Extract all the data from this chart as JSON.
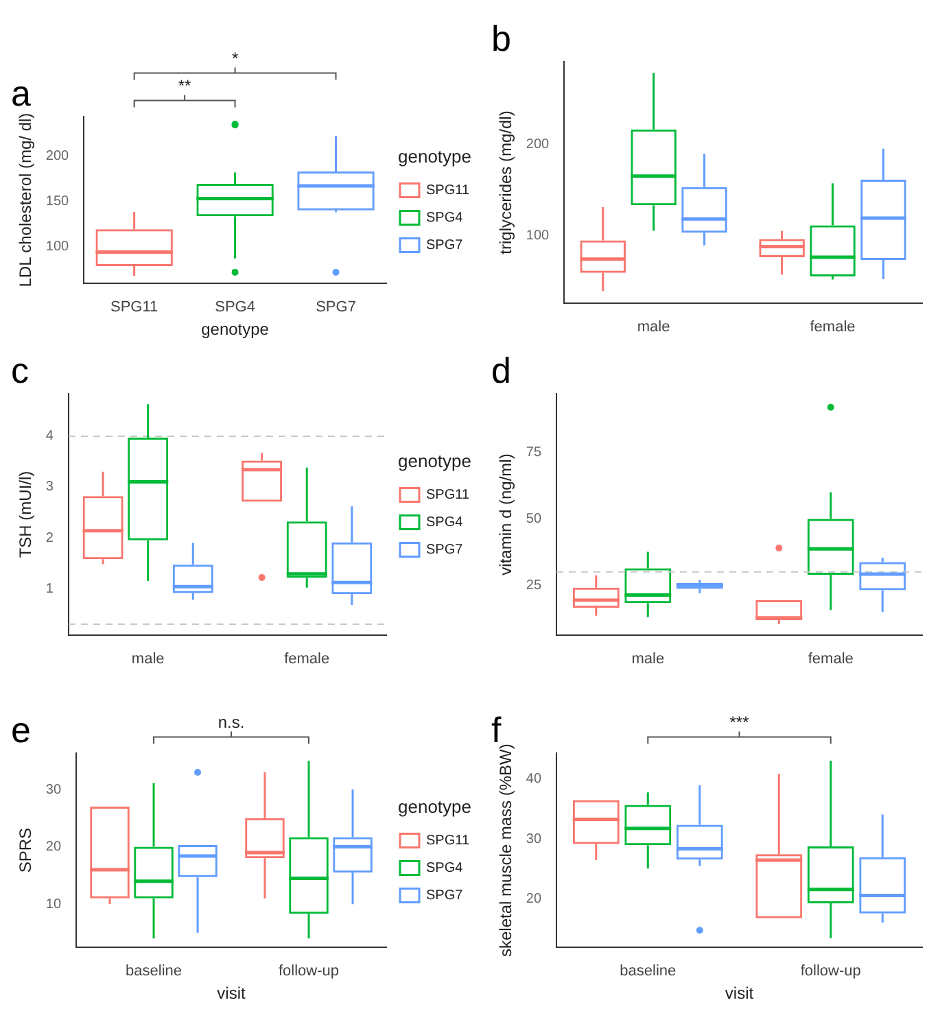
{
  "chart_data": [
    {
      "type": "box",
      "title": "a",
      "xlabel": "genotype",
      "ylabel": "LDL cholesterol (mg/ dl)",
      "legend_title": "genotype",
      "legend": "right",
      "categories": [
        "SPG11",
        "SPG4",
        "SPG7"
      ],
      "ylim": [
        60,
        243
      ],
      "yticks": [
        100,
        150,
        200
      ],
      "grid": false,
      "annotations": [
        "**",
        "*"
      ],
      "series": [
        {
          "name": "SPG11",
          "color": "#f8766d",
          "boxes": [
            {
              "low": 68,
              "q1": 78.8,
              "median": 94.2,
              "q3": 119.3,
              "high": 138.3
            },
            null,
            null
          ]
        },
        {
          "name": "SPG4",
          "color": "#00ba38",
          "boxes": [
            null,
            {
              "low": 87.2,
              "q1": 133.6,
              "median": 153,
              "q3": 169.3,
              "high": 181.8,
              "outliers": [
                234,
                235,
                72
              ]
            },
            null
          ]
        },
        {
          "name": "SPG7",
          "color": "#619cff",
          "boxes": [
            null,
            null,
            {
              "low": 138,
              "q1": 140,
              "median": 167,
              "q3": 183,
              "high": 222,
              "outliers": [
                72
              ]
            }
          ]
        }
      ]
    },
    {
      "type": "box",
      "title": "b",
      "ylabel": "triglycerides (mg/dl)",
      "categories": [
        "male",
        "female"
      ],
      "ylim": [
        26,
        290
      ],
      "yticks": [
        100,
        200
      ],
      "grid": false,
      "series": [
        {
          "color": "#f8766d",
          "boxes": [
            {
              "low": 39,
              "q1": 59,
              "median": 74,
              "q3": 94.5,
              "high": 131
            },
            {
              "low": 57,
              "q1": 76,
              "median": 87.7,
              "q3": 96,
              "high": 105
            }
          ]
        },
        {
          "color": "#00ba38",
          "boxes": [
            {
              "low": 105,
              "q1": 133,
              "median": 165,
              "q3": 216,
              "high": 278
            },
            {
              "low": 51.6,
              "q1": 55,
              "median": 76,
              "q3": 111,
              "high": 157
            }
          ]
        },
        {
          "color": "#619cff",
          "boxes": [
            {
              "low": 89,
              "q1": 103,
              "median": 118,
              "q3": 153,
              "high": 189.5
            },
            {
              "low": 52,
              "q1": 73,
              "median": 119,
              "q3": 161,
              "high": 195
            }
          ]
        }
      ]
    },
    {
      "type": "box",
      "title": "c",
      "ylabel": "TSH (mUI/l)",
      "legend_title": "genotype",
      "legend": "right",
      "categories": [
        "male",
        "female"
      ],
      "ylim": [
        0.09,
        4.83
      ],
      "yticks": [
        1,
        2,
        3,
        4
      ],
      "grid": false,
      "ref_lines": [
        {
          "axis": "y",
          "value": 4,
          "color": "#c8c8c8",
          "line_style": "dashed"
        },
        {
          "axis": "y",
          "value": 0.3,
          "color": "#c8c8c8",
          "line_style": "dashed"
        }
      ],
      "series": [
        {
          "name": "SPG11",
          "color": "#f8766d",
          "boxes": [
            {
              "low": 1.48,
              "q1": 1.58,
              "median": 2.14,
              "q3": 2.82,
              "high": 3.3
            },
            {
              "low": 2.71,
              "q1": 2.71,
              "median": 3.34,
              "q3": 3.52,
              "high": 3.67,
              "outliers": [
                1.22
              ]
            }
          ]
        },
        {
          "name": "SPG4",
          "color": "#00ba38",
          "boxes": [
            {
              "low": 1.15,
              "q1": 1.95,
              "median": 3.1,
              "q3": 3.97,
              "high": 4.63
            },
            {
              "low": 1.02,
              "q1": 1.21,
              "median": 1.29,
              "q3": 2.32,
              "high": 3.38
            }
          ]
        },
        {
          "name": "SPG7",
          "color": "#619cff",
          "boxes": [
            {
              "low": 0.78,
              "q1": 0.91,
              "median": 1.04,
              "q3": 1.47,
              "high": 1.9
            },
            {
              "low": 0.68,
              "q1": 0.89,
              "median": 1.12,
              "q3": 1.91,
              "high": 2.62
            }
          ]
        }
      ]
    },
    {
      "type": "box",
      "title": "d",
      "ylabel": "vitamin d (ng/ml)",
      "categories": [
        "male",
        "female"
      ],
      "ylim": [
        6.3,
        97
      ],
      "yticks": [
        25,
        50,
        75
      ],
      "grid": false,
      "ref_lines": [
        {
          "axis": "y",
          "value": 30,
          "color": "#c8c8c8",
          "line_style": "dashed"
        }
      ],
      "series": [
        {
          "color": "#f8766d",
          "boxes": [
            {
              "low": 13.5,
              "q1": 16.5,
              "median": 19.4,
              "q3": 24.1,
              "high": 28.7
            },
            {
              "low": 10.4,
              "q1": 11.9,
              "median": 12.7,
              "q3": 19.4,
              "high": 19.4,
              "outliers": [
                39
              ]
            }
          ]
        },
        {
          "color": "#00ba38",
          "boxes": [
            {
              "low": 13,
              "q1": 18.3,
              "median": 21.3,
              "q3": 31.4,
              "high": 37.6
            },
            {
              "low": 15.7,
              "q1": 28.9,
              "median": 38.7,
              "q3": 50,
              "high": 60,
              "outliers": [
                92
              ]
            }
          ]
        },
        {
          "color": "#619cff",
          "boxes": [
            {
              "low": 22,
              "q1": 23.6,
              "median": 25,
              "q3": 25.8,
              "high": 27
            },
            {
              "low": 14.9,
              "q1": 23.1,
              "median": 29.2,
              "q3": 33.7,
              "high": 35.4
            }
          ]
        }
      ]
    },
    {
      "type": "box",
      "title": "e",
      "xlabel": "visit",
      "ylabel": "SPRS",
      "legend_title": "genotype",
      "legend": "right",
      "categories": [
        "baseline",
        "follow-up"
      ],
      "ylim": [
        2.5,
        36.3
      ],
      "yticks": [
        10,
        20,
        30
      ],
      "grid": false,
      "annotations": [
        "n.s."
      ],
      "series": [
        {
          "name": "SPG11",
          "color": "#f8766d",
          "boxes": [
            {
              "low": 10,
              "q1": 11,
              "median": 16,
              "q3": 27,
              "high": 27
            },
            {
              "low": 11,
              "q1": 18,
              "median": 19,
              "q3": 25,
              "high": 33
            }
          ]
        },
        {
          "name": "SPG4",
          "color": "#00ba38",
          "boxes": [
            {
              "low": 4,
              "q1": 11,
              "median": 14,
              "q3": 20,
              "high": 31.1
            },
            {
              "low": 4,
              "q1": 8.3,
              "median": 14.5,
              "q3": 21.7,
              "high": 35
            }
          ]
        },
        {
          "name": "SPG7",
          "color": "#619cff",
          "boxes": [
            {
              "low": 5,
              "q1": 14.7,
              "median": 18.4,
              "q3": 20.3,
              "high": 20.3,
              "outliers": [
                33
              ]
            },
            {
              "low": 10,
              "q1": 15.5,
              "median": 20,
              "q3": 21.7,
              "high": 30
            }
          ]
        }
      ]
    },
    {
      "type": "box",
      "title": "f",
      "xlabel": "visit",
      "ylabel": "skeletal muscle mass (%BW)",
      "categories": [
        "baseline",
        "follow-up"
      ],
      "ylim": [
        12,
        44.3
      ],
      "yticks": [
        20,
        30,
        40
      ],
      "grid": false,
      "annotations": [
        "***"
      ],
      "series": [
        {
          "color": "#f8766d",
          "boxes": [
            {
              "low": 26.5,
              "q1": 29.2,
              "median": 33.3,
              "q3": 36.5,
              "high": 36.5
            },
            {
              "low": 16.8,
              "q1": 16.8,
              "median": 26.5,
              "q3": 27.5,
              "high": 40.9
            }
          ]
        },
        {
          "color": "#00ba38",
          "boxes": [
            {
              "low": 25.1,
              "q1": 29,
              "median": 31.8,
              "q3": 35.7,
              "high": 37.8
            },
            {
              "low": 13.5,
              "q1": 19.3,
              "median": 21.6,
              "q3": 28.8,
              "high": 43.1
            }
          ]
        },
        {
          "color": "#619cff",
          "boxes": [
            {
              "low": 25.5,
              "q1": 26.6,
              "median": 28.4,
              "q3": 32.4,
              "high": 39,
              "outliers": [
                14.8
              ]
            },
            {
              "low": 16.1,
              "q1": 17.6,
              "median": 20.6,
              "q3": 27,
              "high": 34.1
            }
          ]
        }
      ]
    }
  ]
}
